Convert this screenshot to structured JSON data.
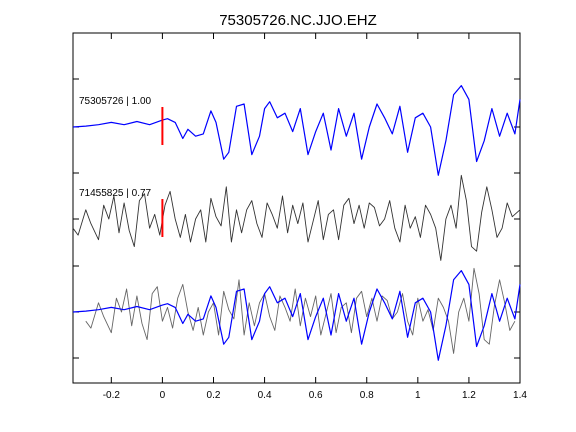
{
  "chart_data": {
    "type": "line",
    "title": "75305726.NC.JJO.EHZ",
    "xlabel": "",
    "ylabel": "",
    "xlim": [
      -0.35,
      1.4
    ],
    "x_ticks": [
      -0.2,
      0,
      0.2,
      0.4,
      0.6,
      0.8,
      1,
      1.2,
      1.4
    ],
    "x_tick_labels": [
      "-0.2",
      "0",
      "0.2",
      "0.4",
      "0.6",
      "0.8",
      "1",
      "1.2",
      "1.4"
    ],
    "grid": false,
    "legend": "none",
    "pick_time": 0,
    "traces": [
      {
        "label": "75305726 | 1.00",
        "color": "#0000ff",
        "x": [
          -0.35,
          -0.3,
          -0.25,
          -0.2,
          -0.15,
          -0.1,
          -0.05,
          0.0,
          0.02,
          0.05,
          0.08,
          0.1,
          0.13,
          0.16,
          0.19,
          0.21,
          0.24,
          0.26,
          0.29,
          0.32,
          0.35,
          0.38,
          0.4,
          0.42,
          0.45,
          0.48,
          0.51,
          0.54,
          0.57,
          0.6,
          0.63,
          0.66,
          0.69,
          0.72,
          0.75,
          0.78,
          0.81,
          0.84,
          0.87,
          0.9,
          0.93,
          0.96,
          0.99,
          1.02,
          1.05,
          1.08,
          1.11,
          1.14,
          1.17,
          1.2,
          1.23,
          1.26,
          1.29,
          1.32,
          1.35,
          1.38,
          1.4
        ],
        "y": [
          0.0,
          0.02,
          0.05,
          0.1,
          0.05,
          0.12,
          0.05,
          0.15,
          0.18,
          0.1,
          -0.25,
          -0.05,
          -0.2,
          -0.15,
          0.35,
          0.1,
          -0.7,
          -0.55,
          0.45,
          0.5,
          -0.6,
          -0.2,
          0.4,
          0.55,
          0.2,
          0.3,
          -0.1,
          0.4,
          -0.6,
          -0.1,
          0.3,
          -0.5,
          0.4,
          -0.2,
          0.3,
          -0.7,
          0.0,
          0.5,
          0.2,
          -0.15,
          0.45,
          -0.55,
          0.2,
          0.3,
          0.0,
          -1.05,
          -0.3,
          0.7,
          0.9,
          0.6,
          -0.75,
          -0.3,
          0.4,
          -0.2,
          0.3,
          -0.15,
          0.6
        ]
      },
      {
        "label": "71455825 | 0.77",
        "color": "#333333",
        "x": [
          -0.35,
          -0.33,
          -0.3,
          -0.28,
          -0.25,
          -0.23,
          -0.21,
          -0.19,
          -0.17,
          -0.15,
          -0.13,
          -0.11,
          -0.09,
          -0.07,
          -0.05,
          -0.03,
          -0.01,
          0.01,
          0.03,
          0.05,
          0.07,
          0.09,
          0.11,
          0.13,
          0.15,
          0.17,
          0.19,
          0.21,
          0.23,
          0.25,
          0.27,
          0.29,
          0.31,
          0.33,
          0.35,
          0.37,
          0.39,
          0.41,
          0.43,
          0.45,
          0.47,
          0.49,
          0.51,
          0.53,
          0.55,
          0.57,
          0.59,
          0.61,
          0.63,
          0.65,
          0.67,
          0.69,
          0.71,
          0.73,
          0.75,
          0.77,
          0.79,
          0.81,
          0.83,
          0.85,
          0.87,
          0.89,
          0.91,
          0.93,
          0.95,
          0.97,
          0.99,
          1.01,
          1.03,
          1.05,
          1.07,
          1.09,
          1.11,
          1.13,
          1.15,
          1.17,
          1.19,
          1.21,
          1.23,
          1.25,
          1.27,
          1.29,
          1.31,
          1.33,
          1.35,
          1.37,
          1.4
        ],
        "y": [
          -0.2,
          -0.35,
          0.2,
          -0.1,
          -0.45,
          0.3,
          0.0,
          0.5,
          -0.3,
          0.35,
          -0.25,
          -0.6,
          0.4,
          0.55,
          -0.2,
          0.1,
          -0.35,
          0.3,
          0.6,
          0.0,
          -0.4,
          0.1,
          -0.5,
          0.0,
          0.2,
          -0.5,
          0.45,
          0.05,
          -0.15,
          0.7,
          -0.5,
          0.2,
          -0.3,
          0.2,
          0.4,
          -0.1,
          -0.4,
          0.35,
          0.1,
          -0.2,
          0.5,
          -0.3,
          0.3,
          -0.1,
          0.35,
          -0.5,
          -0.05,
          0.4,
          -0.45,
          0.1,
          0.2,
          -0.45,
          0.3,
          0.45,
          -0.1,
          0.3,
          -0.2,
          0.35,
          0.25,
          -0.15,
          0.0,
          0.4,
          -0.2,
          -0.5,
          0.3,
          -0.2,
          0.05,
          -0.4,
          0.3,
          0.1,
          -0.2,
          -0.9,
          0.0,
          0.3,
          -0.2,
          0.95,
          0.4,
          -0.6,
          -0.7,
          0.15,
          0.7,
          0.2,
          -0.4,
          -0.2,
          0.35,
          0.05,
          0.2
        ]
      }
    ],
    "overlay": {
      "label": "",
      "shifted_time": 0.05
    }
  }
}
